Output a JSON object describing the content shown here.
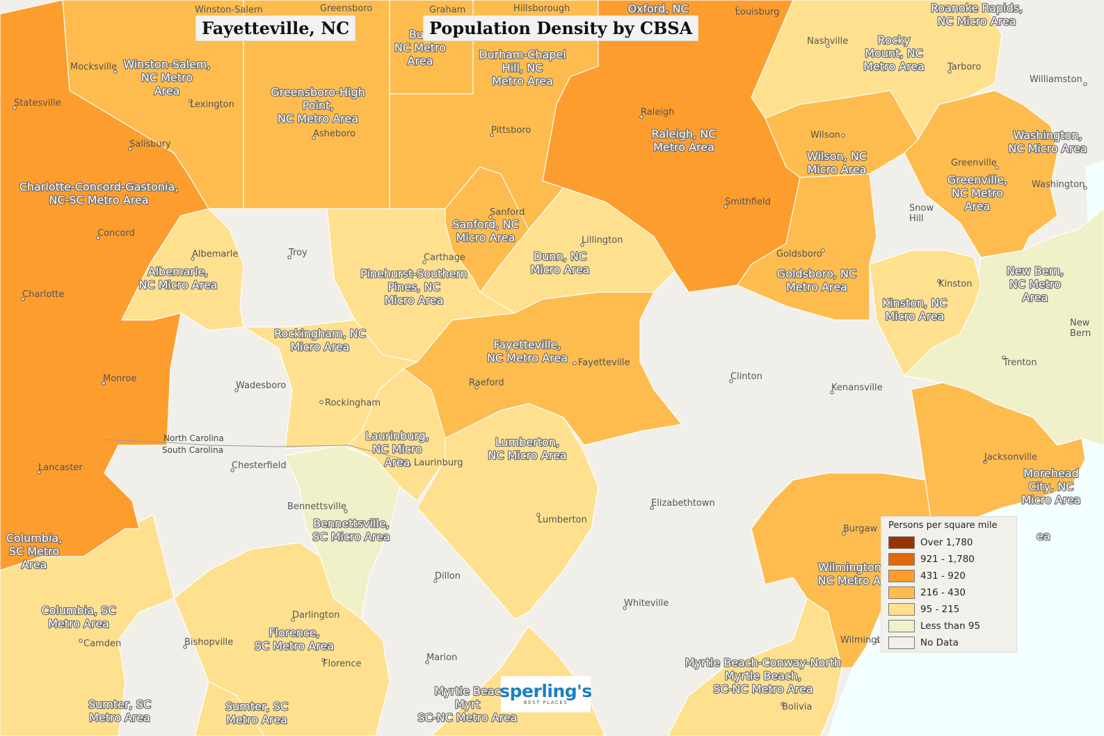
{
  "title": {
    "city": "Fayetteville, NC",
    "main": "Population Density by CBSA"
  },
  "colors": {
    "over_1780": "#993300",
    "c921_1780": "#e06910",
    "c431_920": "#fd9d2e",
    "c216_430": "#fdbc4d",
    "c95_215": "#fee08f",
    "less_95": "#f0f0c9",
    "no_data": "#f0efea",
    "sea": "#f4ffff"
  },
  "legend": {
    "title": "Persons per square mile",
    "items": [
      {
        "label": "Over 1,780",
        "color": "#993300"
      },
      {
        "label": "921 - 1,780",
        "color": "#e06910"
      },
      {
        "label": "431 - 920",
        "color": "#fd9d2e"
      },
      {
        "label": "216 - 430",
        "color": "#fdbc4d"
      },
      {
        "label": "95 - 215",
        "color": "#fee08f"
      },
      {
        "label": "Less than 95",
        "color": "#f0f0c9"
      },
      {
        "label": "No Data",
        "color": "#f0efea"
      }
    ]
  },
  "states": {
    "north": "North Carolina",
    "south": "South Carolina"
  },
  "cities": {
    "winston_salem": "Winston-Salem",
    "greensboro": "Greensboro",
    "graham": "Graham",
    "hillsborough": "Hillsborough",
    "oxford": "Oxford",
    "louisburg": "Louisburg",
    "nashville": "Nashville",
    "tarboro": "Tarboro",
    "williamston": "Williamston",
    "mocksville": "Mocksville",
    "statesville": "Statesville",
    "lexington": "Lexington",
    "asheboro": "Asheboro",
    "pittsboro": "Pittsboro",
    "raleigh": "Raleigh",
    "wilson": "Wilson",
    "greenville": "Greenville",
    "washington": "Washington",
    "salisbury": "Salisbury",
    "concord": "Concord",
    "albemarle": "Albemarle",
    "troy": "Troy",
    "sanford": "Sanford",
    "carthage": "Carthage",
    "lillington": "Lillington",
    "smithfield": "Smithfield",
    "goldsboro": "Goldsboro",
    "snow_hill": "Snow\nHill",
    "kinston": "Kinston",
    "new_bern": "New\nBern",
    "charlotte": "Charlotte",
    "monroe": "Monroe",
    "wadesboro": "Wadesboro",
    "rockingham": "Rockingham",
    "fayetteville": "Fayetteville",
    "raeford": "Raeford",
    "clinton": "Clinton",
    "kenansville": "Kenansville",
    "trenton": "Trenton",
    "lancaster": "Lancaster",
    "chesterfield": "Chesterfield",
    "laurinburg": "Laurinburg",
    "bennettsville": "Bennettsville",
    "lumberton": "Lumberton",
    "elizabethtown": "Elizabethtown",
    "jacksonville": "Jacksonville",
    "burgaw": "Burgaw",
    "dillon": "Dillon",
    "whiteville": "Whiteville",
    "camden": "Camden",
    "bishopville": "Bishopville",
    "darlington": "Darlington",
    "florence": "Florence",
    "marion": "Marion",
    "wilmington": "Wilmingt",
    "bolivia": "Bolivia"
  },
  "areas": {
    "winston_salem": "Winston-Salem,\nNC Metro\nArea",
    "greensboro": "Greensboro-High\nPoint,\nNC Metro Area",
    "burlington": "Burl\nNC Metro\nArea",
    "durham": "Durham-Chapel\nHill, NC\nMetro Area",
    "oxford": "Oxford, NC\nrea",
    "roanoke_rapids": "Roanoke Rapids,\nNC Micro Area",
    "rocky_mount": "Rocky\nMount, NC\nMetro Area",
    "raleigh": "Raleigh, NC\nMetro Area",
    "wilson": "Wilson, NC\nMicro Area",
    "washington": "Washington,\nNC Micro Area",
    "greenville": "Greenville,\nNC Metro\nArea",
    "charlotte": "Charlotte-Concord-Gastonia,\nNC-SC Metro Area",
    "sanford": "Sanford, NC\nMicro Area",
    "dunn": "Dunn, NC\nMicro Area",
    "albemarle": "Albemarle,\nNC Micro Area",
    "pinehurst": "Pinehurst-Southern\nPines, NC\nMicro Area",
    "goldsboro": "Goldsboro, NC\nMetro Area",
    "new_bern": "New Bern,\nNC Metro\nArea",
    "kinston": "Kinston, NC\nMicro Area",
    "rockingham": "Rockingham, NC\nMicro Area",
    "fayetteville": "Fayetteville,\nNC Metro Area",
    "laurinburg": "Laurinburg,\nNC Micro\nArea",
    "lumberton": "Lumberton,\nNC Micro Area",
    "morehead": "Morehead\nCity, NC\nMicro Area",
    "columbia_west": "Columbia,\nSC Metro\nArea",
    "bennettsville": "Bennettsville,\nSC Micro Area",
    "wilmington": "Wilmington,\nNC Metro Ar",
    "columbia": "Columbia, SC\nMetro Area",
    "florence": "Florence,\nSC Metro Area",
    "myrtle_beach": "Myrtle Beach-Conway-North\nMyrtle Beach,\nSC-NC Metro Area",
    "myrtle_beach_2": "Myrtle Beac\nMyrt\nSC-NC Metro Area",
    "sumter_1": "Sumter, SC\nMetro Area",
    "sumter_2": "Sumter, SC\nMetro Area",
    "morehead_tail": "ea"
  },
  "logo": {
    "name": "sperling's",
    "tagline": "BEST PLACES"
  }
}
